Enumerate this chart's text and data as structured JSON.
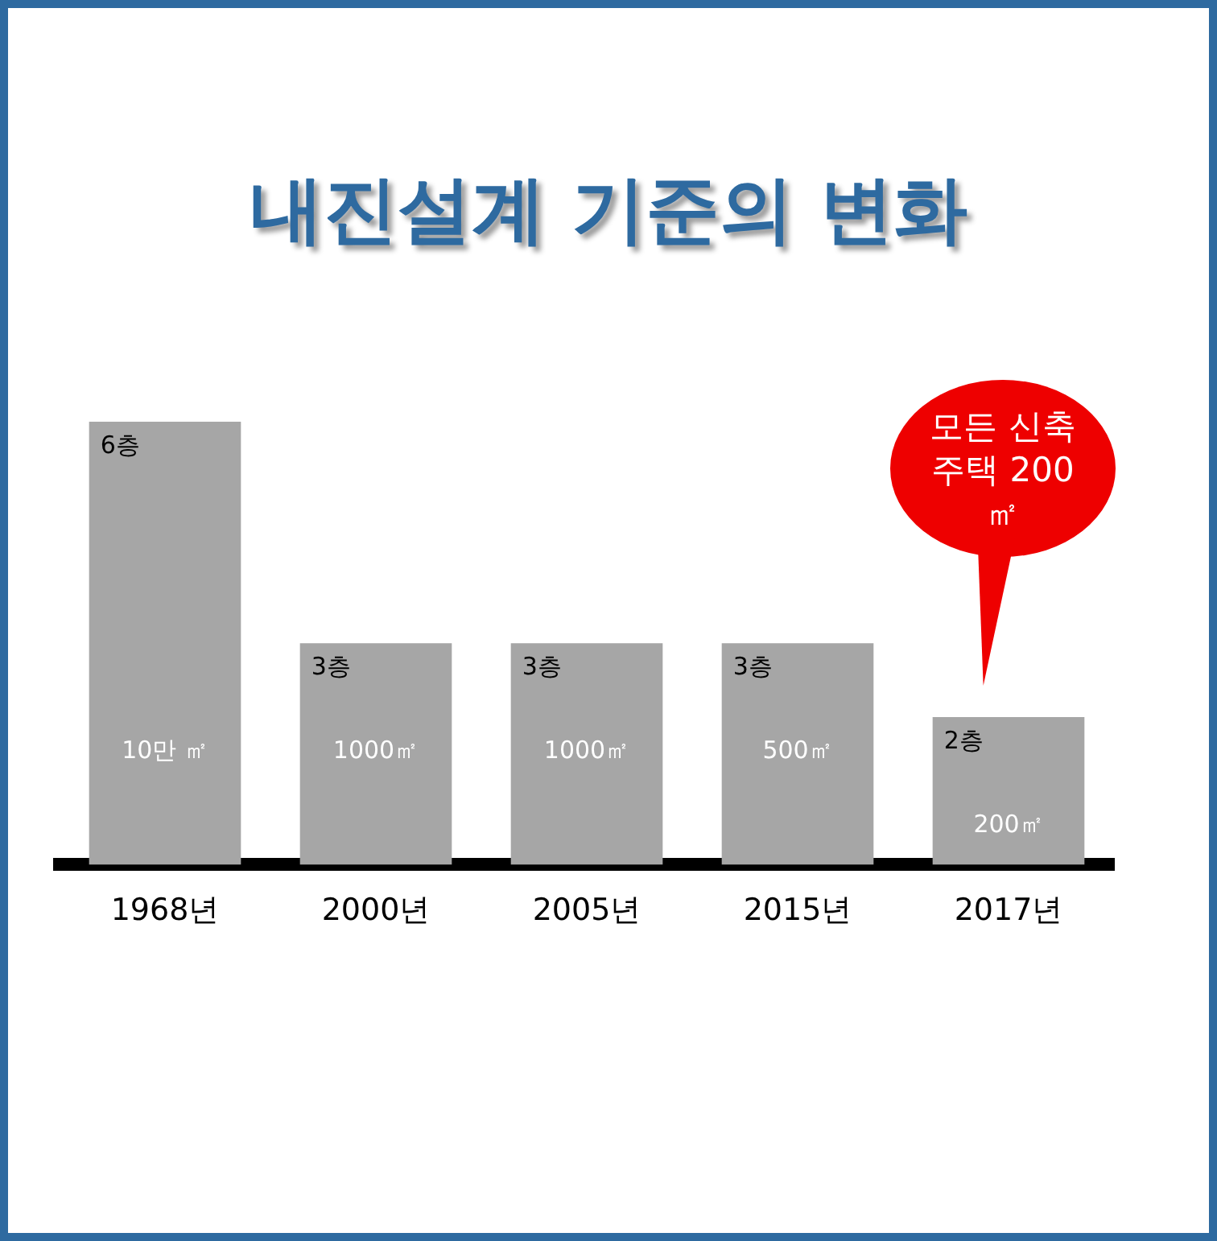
{
  "chart_data": {
    "type": "bar",
    "title": "내진설계 기준의 변화",
    "categories": [
      "1968년",
      "2000년",
      "2005년",
      "2015년",
      "2017년"
    ],
    "values": [
      6,
      3,
      3,
      3,
      2
    ],
    "value_labels": [
      "6층",
      "3층",
      "3층",
      "3층",
      "2층"
    ],
    "color": "#a6a6a6",
    "annotations": [
      "10만 ㎡",
      "1000㎡",
      "1000㎡",
      "500㎡",
      "200㎡",
      "모든 신축 주택 200㎡"
    ],
    "grid": false,
    "legend": false
  }
}
